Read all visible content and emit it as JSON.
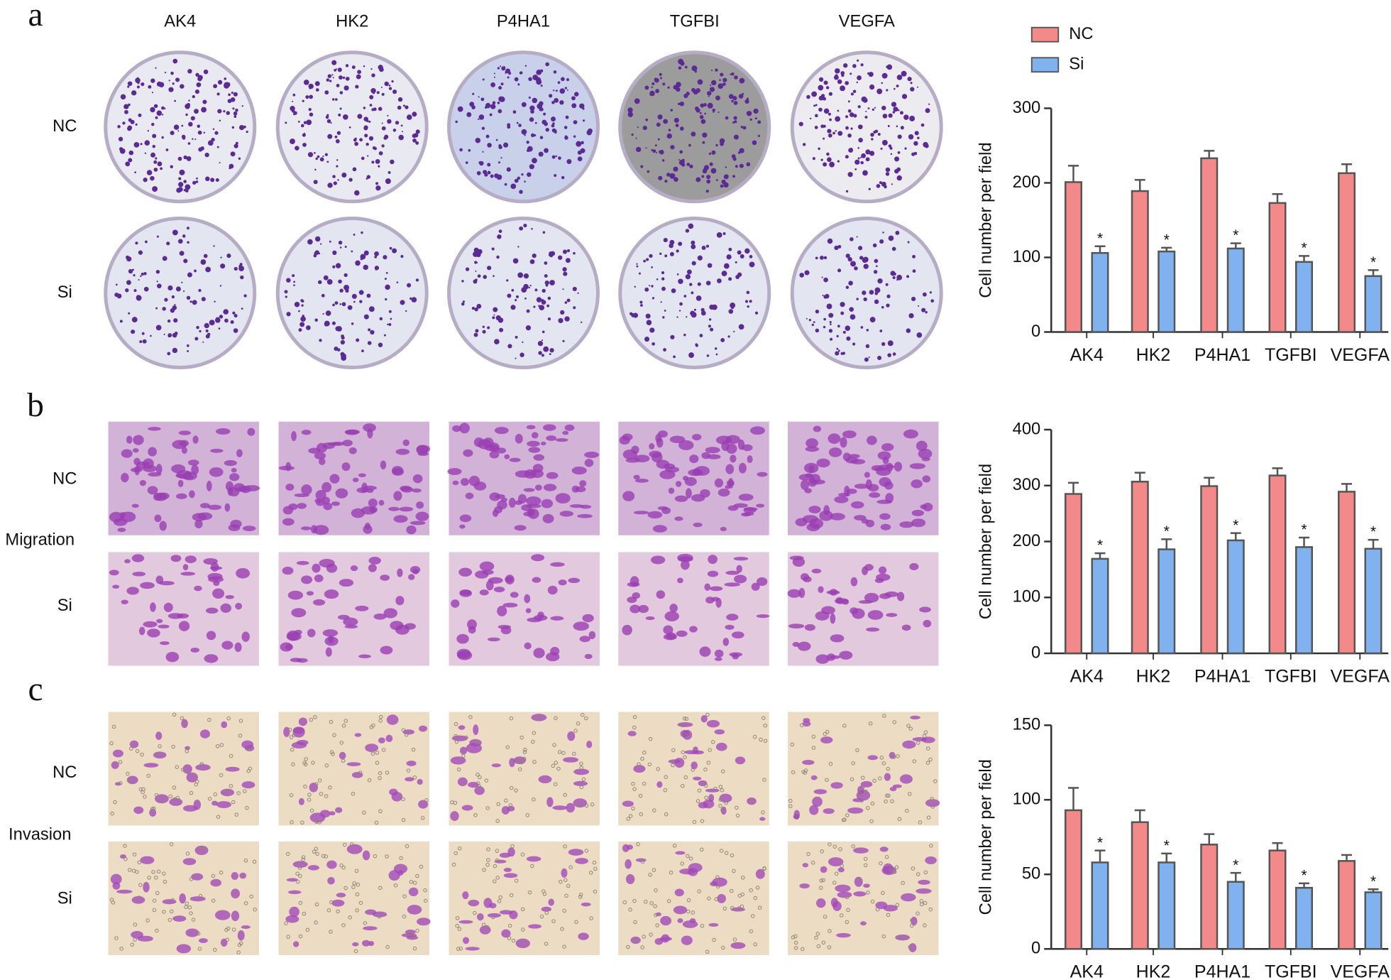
{
  "figure": {
    "columns": [
      "AK4",
      "HK2",
      "P4HA1",
      "TGFBI",
      "VEGFA"
    ],
    "panels": [
      {
        "label": "a",
        "row_labels": [
          "NC",
          "Si"
        ]
      },
      {
        "label": "b",
        "side_label": "Migration",
        "row_labels": [
          "NC",
          "Si"
        ]
      },
      {
        "label": "c",
        "side_label": "Invasion",
        "row_labels": [
          "NC",
          "Si"
        ]
      }
    ]
  },
  "chart_data": [
    {
      "type": "bar",
      "ylabel": "Cell number per field",
      "legend": true,
      "categories": [
        "AK4",
        "HK2",
        "P4HA1",
        "TGFBI",
        "VEGFA"
      ],
      "series": [
        {
          "name": "NC",
          "color": "#f4898a",
          "values": [
            201,
            189,
            233,
            173,
            213
          ],
          "errors": [
            22,
            15,
            10,
            12,
            12
          ]
        },
        {
          "name": "Si",
          "color": "#7fb2ee",
          "values": [
            106,
            108,
            112,
            94,
            75
          ],
          "errors": [
            9,
            5,
            7,
            8,
            8
          ],
          "value_labels": [
            "*",
            "*",
            "*",
            "*",
            "*"
          ]
        }
      ],
      "ylim": [
        0,
        300
      ],
      "yticks": [
        0,
        100,
        200,
        300
      ]
    },
    {
      "type": "bar",
      "ylabel": "Cell number per field",
      "legend": false,
      "categories": [
        "AK4",
        "HK2",
        "P4HA1",
        "TGFBI",
        "VEGFA"
      ],
      "series": [
        {
          "color": "#f4898a",
          "values": [
            285,
            307,
            299,
            318,
            289
          ],
          "errors": [
            20,
            16,
            15,
            13,
            14
          ]
        },
        {
          "color": "#7fb2ee",
          "values": [
            169,
            186,
            202,
            190,
            187
          ],
          "errors": [
            10,
            18,
            13,
            17,
            16
          ],
          "value_labels": [
            "*",
            "*",
            "*",
            "*",
            "*"
          ]
        }
      ],
      "ylim": [
        0,
        400
      ],
      "yticks": [
        0,
        100,
        200,
        300,
        400
      ]
    },
    {
      "type": "bar",
      "ylabel": "Cell number per field",
      "legend": false,
      "categories": [
        "AK4",
        "HK2",
        "P4HA1",
        "TGFBI",
        "VEGFA"
      ],
      "series": [
        {
          "color": "#f4898a",
          "values": [
            93,
            85,
            70,
            66,
            59
          ],
          "errors": [
            15,
            8,
            7,
            5,
            4
          ]
        },
        {
          "color": "#7fb2ee",
          "values": [
            58,
            58,
            45,
            41,
            38
          ],
          "errors": [
            8,
            6,
            6,
            3,
            2
          ],
          "value_labels": [
            "*",
            "*",
            "*",
            "*",
            "*"
          ]
        }
      ],
      "ylim": [
        0,
        150
      ],
      "yticks": [
        0,
        50,
        100,
        150
      ]
    }
  ]
}
